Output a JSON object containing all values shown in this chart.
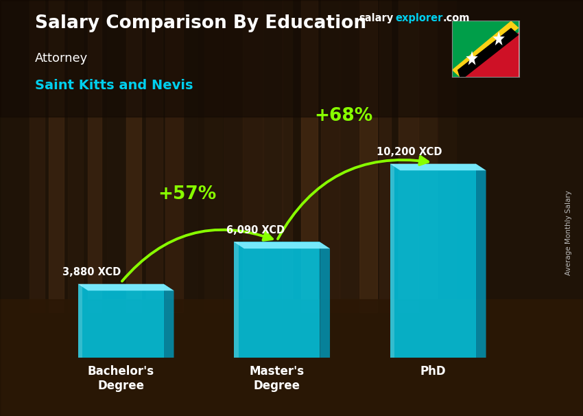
{
  "title": "Salary Comparison By Education",
  "subtitle1": "Attorney",
  "subtitle2": "Saint Kitts and Nevis",
  "ylabel": "Average Monthly Salary",
  "categories": [
    "Bachelor's\nDegree",
    "Master's\nDegree",
    "PhD"
  ],
  "values": [
    3880,
    6090,
    10200
  ],
  "labels": [
    "3,880 XCD",
    "6,090 XCD",
    "10,200 XCD"
  ],
  "pct_labels": [
    "+57%",
    "+68%"
  ],
  "bar_color_face": "#00d0f0",
  "bar_color_light": "#80eeff",
  "bar_color_dark": "#0099bb",
  "bar_alpha": 0.82,
  "bg_dark": "#3a2510",
  "bg_mid": "#5c3a1e",
  "title_color": "#ffffff",
  "subtitle1_color": "#ffffff",
  "subtitle2_color": "#00cfee",
  "label_color": "#ffffff",
  "pct_color": "#88ff00",
  "arrow_color": "#44ee00",
  "brand_color_salary": "#ffffff",
  "brand_color_explorer": "#00cfee",
  "side_label_color": "#bbbbbb",
  "x_positions": [
    1.0,
    3.0,
    5.0
  ],
  "bar_width": 1.1,
  "ylim_max": 14000,
  "figsize": [
    8.5,
    6.06
  ]
}
